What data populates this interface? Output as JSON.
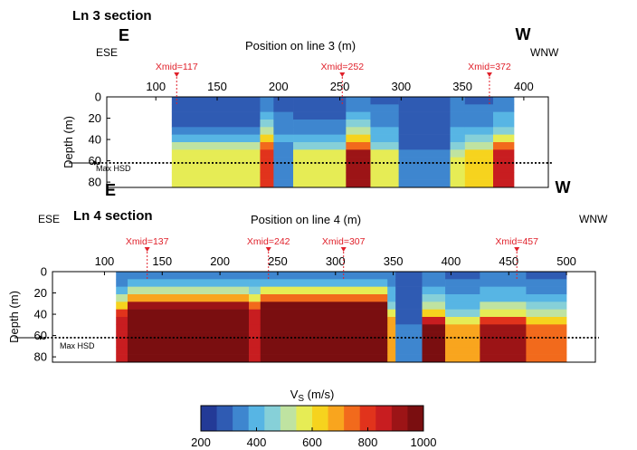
{
  "chart_data": {
    "type": "heatmap",
    "colorbar": {
      "label": "V",
      "label_sub": "S",
      "label_unit": " (m/s)",
      "ticks": [
        "200",
        "400",
        "600",
        "800",
        "1000"
      ],
      "range": [
        200,
        1000
      ],
      "colors": [
        "#233a97",
        "#2f5bb3",
        "#3e86cf",
        "#57b5e4",
        "#86d0d8",
        "#bfe3a1",
        "#e6ec55",
        "#f6d31e",
        "#f9a51e",
        "#f26a1c",
        "#e1331c",
        "#c81d20",
        "#9c1416",
        "#7a0e10"
      ]
    },
    "sections": [
      {
        "title": "Ln 3 section",
        "left_compass": "E",
        "right_compass": "W",
        "left_dir": "ESE",
        "right_dir": "WNW",
        "xlabel": "Position on line 3 (m)",
        "ylabel": "Depth (m)",
        "xlim": [
          60,
          420
        ],
        "ylim": [
          0,
          85
        ],
        "xticks": [
          "100",
          "150",
          "200",
          "250",
          "300",
          "350",
          "400"
        ],
        "xtick_values": [
          100,
          150,
          200,
          250,
          300,
          350,
          400
        ],
        "yticks": [
          "0",
          "20",
          "40",
          "60",
          "80"
        ],
        "ytick_values": [
          0,
          20,
          40,
          60,
          80
        ],
        "data_x_range": [
          113,
          392
        ],
        "xmid_markers": [
          {
            "label": "Xmid=117",
            "x": 117
          },
          {
            "label": "Xmid=252",
            "x": 252
          },
          {
            "label": "Xmid=372",
            "x": 372
          }
        ],
        "max_hsd": {
          "label": "Max HSD",
          "depth": 62
        },
        "columns": [
          {
            "x0": 113,
            "x1": 185,
            "top_v": 250,
            "mid_v": 380,
            "transition_depth": 38,
            "bottom_v": 560
          },
          {
            "x0": 185,
            "x1": 196,
            "top_v": 300,
            "mid_v": 600,
            "transition_depth": 38,
            "bottom_v": 780
          },
          {
            "x0": 196,
            "x1": 212,
            "top_v": 300,
            "mid_v": 380,
            "transition_depth": 40,
            "bottom_v": 320
          },
          {
            "x0": 212,
            "x1": 255,
            "top_v": 280,
            "mid_v": 400,
            "transition_depth": 42,
            "bottom_v": 580
          },
          {
            "x0": 255,
            "x1": 275,
            "top_v": 300,
            "mid_v": 620,
            "transition_depth": 40,
            "bottom_v": 920
          },
          {
            "x0": 275,
            "x1": 298,
            "top_v": 300,
            "mid_v": 420,
            "transition_depth": 42,
            "bottom_v": 560
          },
          {
            "x0": 298,
            "x1": 340,
            "top_v": 300,
            "mid_v": 300,
            "transition_depth": 45,
            "bottom_v": 330
          },
          {
            "x0": 340,
            "x1": 352,
            "top_v": 320,
            "mid_v": 420,
            "transition_depth": 45,
            "bottom_v": 580
          },
          {
            "x0": 352,
            "x1": 375,
            "top_v": 300,
            "mid_v": 480,
            "transition_depth": 42,
            "bottom_v": 620
          },
          {
            "x0": 375,
            "x1": 392,
            "top_v": 300,
            "mid_v": 560,
            "transition_depth": 40,
            "bottom_v": 880
          }
        ]
      },
      {
        "title": "Ln 4 section",
        "left_compass": "E",
        "right_compass": "W",
        "left_dir": "ESE",
        "right_dir": "WNW",
        "xlabel": "Position on line 4 (m)",
        "ylabel": "Depth (m)",
        "xlim": [
          55,
          525
        ],
        "ylim": [
          0,
          85
        ],
        "xticks": [
          "100",
          "150",
          "200",
          "250",
          "300",
          "350",
          "400",
          "450",
          "500"
        ],
        "xtick_values": [
          100,
          150,
          200,
          250,
          300,
          350,
          400,
          450,
          500
        ],
        "yticks": [
          "0",
          "20",
          "40",
          "60",
          "80"
        ],
        "ytick_values": [
          0,
          20,
          40,
          60,
          80
        ],
        "data_x_range": [
          110,
          500
        ],
        "xmid_markers": [
          {
            "label": "Xmid=137",
            "x": 137
          },
          {
            "label": "Xmid=242",
            "x": 242
          },
          {
            "label": "Xmid=307",
            "x": 307
          },
          {
            "label": "Xmid=457",
            "x": 457
          }
        ],
        "max_hsd": {
          "label": "Max HSD",
          "depth": 62
        },
        "columns": [
          {
            "x0": 110,
            "x1": 120,
            "top_v": 300,
            "mid_v": 600,
            "transition_depth": 30,
            "bottom_v": 850
          },
          {
            "x0": 120,
            "x1": 225,
            "top_v": 300,
            "mid_v": 600,
            "transition_depth": 22,
            "bottom_v": 980
          },
          {
            "x0": 225,
            "x1": 235,
            "top_v": 320,
            "mid_v": 650,
            "transition_depth": 28,
            "bottom_v": 880
          },
          {
            "x0": 235,
            "x1": 345,
            "top_v": 300,
            "mid_v": 620,
            "transition_depth": 20,
            "bottom_v": 980
          },
          {
            "x0": 345,
            "x1": 352,
            "top_v": 320,
            "mid_v": 500,
            "transition_depth": 35,
            "bottom_v": 700
          },
          {
            "x0": 352,
            "x1": 375,
            "top_v": 280,
            "mid_v": 300,
            "transition_depth": 40,
            "bottom_v": 320
          },
          {
            "x0": 375,
            "x1": 395,
            "top_v": 300,
            "mid_v": 600,
            "transition_depth": 38,
            "bottom_v": 980
          },
          {
            "x0": 395,
            "x1": 425,
            "top_v": 300,
            "mid_v": 480,
            "transition_depth": 40,
            "bottom_v": 700
          },
          {
            "x0": 425,
            "x1": 465,
            "top_v": 300,
            "mid_v": 560,
            "transition_depth": 38,
            "bottom_v": 900
          },
          {
            "x0": 465,
            "x1": 500,
            "top_v": 300,
            "mid_v": 520,
            "transition_depth": 40,
            "bottom_v": 720
          }
        ]
      }
    ]
  }
}
